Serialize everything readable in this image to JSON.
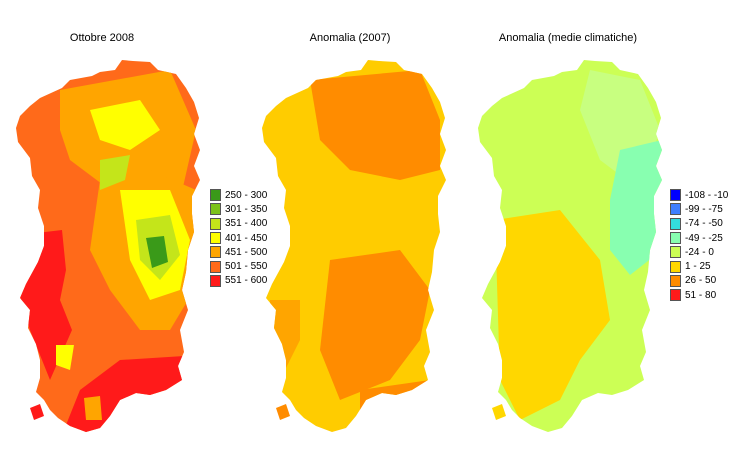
{
  "maps": [
    {
      "title": "Ottobre 2008",
      "legend": [
        {
          "label": "250 - 300",
          "color": "#3a9a19"
        },
        {
          "label": "301 - 350",
          "color": "#7cc21a"
        },
        {
          "label": "351 - 400",
          "color": "#c4e51a"
        },
        {
          "label": "401 - 450",
          "color": "#ffff00"
        },
        {
          "label": "451 - 500",
          "color": "#ffa500"
        },
        {
          "label": "501 - 550",
          "color": "#ff6a1a"
        },
        {
          "label": "551 - 600",
          "color": "#ff1a1a"
        }
      ]
    },
    {
      "title": "Anomalia (2007)"
    },
    {
      "title": "Anomalia (medie climatiche)",
      "legend": [
        {
          "label": "-108 - -10",
          "color": "#0000ff"
        },
        {
          "label": "-99 - -75",
          "color": "#3f7fff"
        },
        {
          "label": "-74 - -50",
          "color": "#33dddd"
        },
        {
          "label": "-49 - -25",
          "color": "#88ffb0"
        },
        {
          "label": "-24 - 0",
          "color": "#ccff55"
        },
        {
          "label": "1 - 25",
          "color": "#ffd700"
        },
        {
          "label": "26 - 50",
          "color": "#ff8c00"
        },
        {
          "label": "51 - 80",
          "color": "#ff1a1a"
        }
      ]
    }
  ]
}
